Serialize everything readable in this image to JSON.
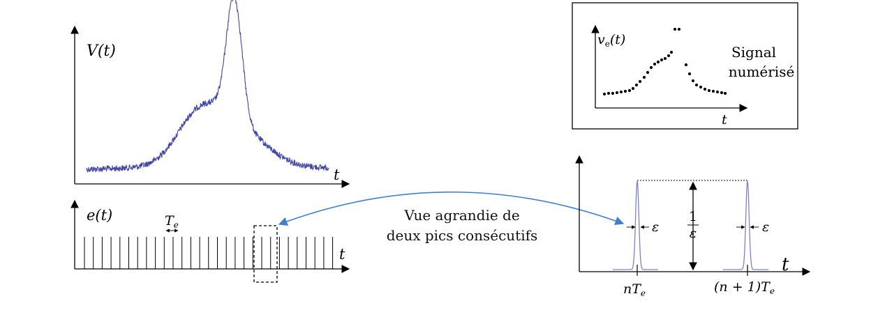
{
  "labels": {
    "v_t": "V(t)",
    "t_top": "t",
    "e_t": "e(t)",
    "te": "T",
    "te_sub": "e",
    "t_comb": "t",
    "ve_t": "v",
    "ve_sub": "e",
    "ve_rest": "(t)",
    "t_inset": "t",
    "signal_line1": "Signal",
    "signal_line2": "numérisé",
    "caption_line1": "Vue agrandie de",
    "caption_line2": "deux pics consécutifs",
    "one": "1",
    "eps_den": "ε",
    "eps_left": "ε",
    "eps_right": "ε",
    "t_right": "t",
    "nte_n": "nT",
    "nte_sub": "e",
    "n1te": "(n + 1)T",
    "n1te_sub": "e"
  },
  "colors": {
    "signal": "#3f45a8",
    "arrow": "#3f7fcf",
    "pulse": "#7b82cc"
  }
}
